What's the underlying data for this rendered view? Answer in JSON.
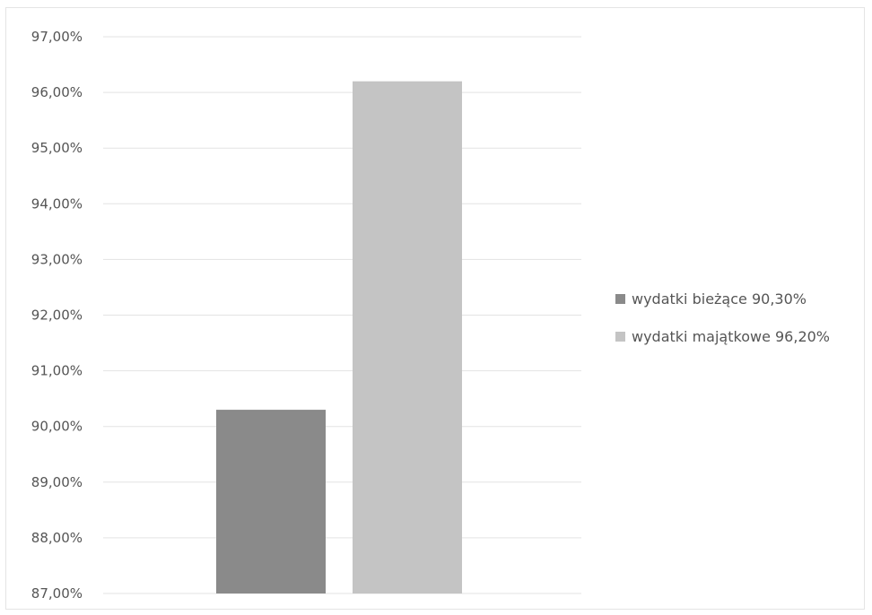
{
  "chart_data": {
    "type": "bar",
    "categories": [
      "wydatki bieżące 90,30%",
      "wydatki majątkowe 96,20%"
    ],
    "values": [
      90.3,
      96.2
    ],
    "colors": [
      "#8a8a8a",
      "#c4c4c4"
    ],
    "ylim": [
      87,
      97
    ],
    "yticks": [
      87,
      88,
      89,
      90,
      91,
      92,
      93,
      94,
      95,
      96,
      97
    ],
    "ytick_labels": [
      "87,00%",
      "88,00%",
      "89,00%",
      "90,00%",
      "91,00%",
      "92,00%",
      "93,00%",
      "94,00%",
      "95,00%",
      "96,00%",
      "97,00%"
    ],
    "grid": true,
    "legend_position": "right",
    "title": "",
    "xlabel": "",
    "ylabel": ""
  }
}
